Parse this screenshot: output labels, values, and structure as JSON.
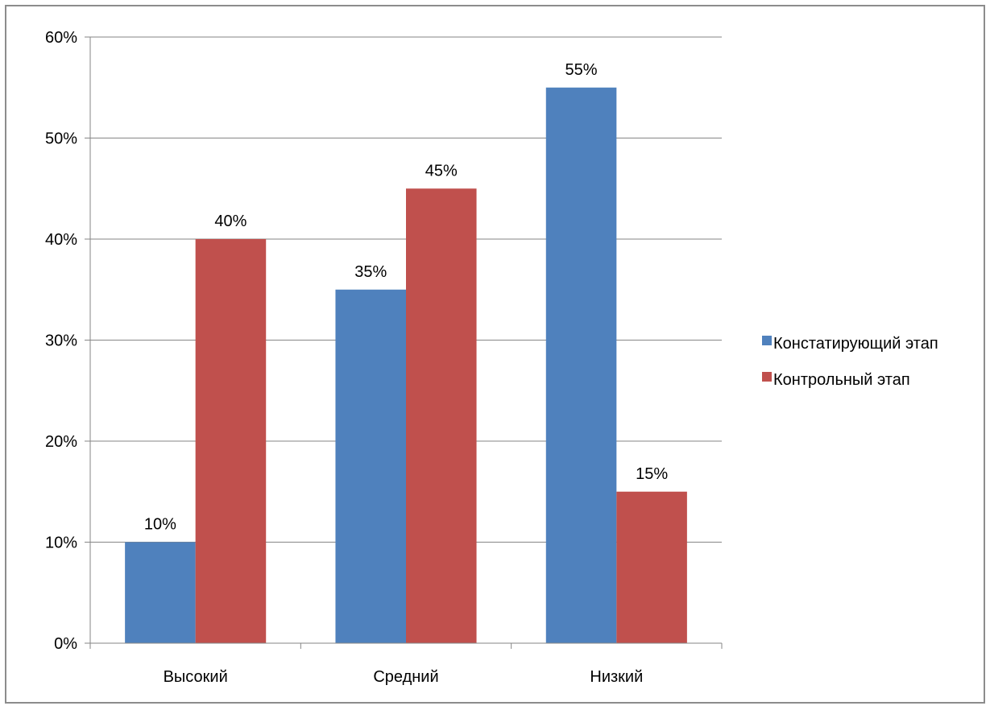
{
  "chart_data": {
    "type": "bar",
    "title": "",
    "xlabel": "",
    "ylabel": "",
    "categories": [
      "Высокий",
      "Средний",
      "Низкий"
    ],
    "series": [
      {
        "name": "Констатирующий этап",
        "values": [
          10,
          35,
          55
        ],
        "labels": [
          "10%",
          "35%",
          "55%"
        ],
        "color": "#4F81BD"
      },
      {
        "name": "Контрольный этап",
        "values": [
          40,
          45,
          15
        ],
        "labels": [
          "40%",
          "45%",
          "15%"
        ],
        "color": "#C0504D"
      }
    ],
    "ylim": [
      0,
      60
    ],
    "yticks": [
      0,
      10,
      20,
      30,
      40,
      50,
      60
    ],
    "ytick_labels": [
      "0%",
      "10%",
      "20%",
      "30%",
      "40%",
      "50%",
      "60%"
    ],
    "grid": true,
    "legend": "right",
    "gridline_color": "#868686",
    "frame_color": "#8C8C8C"
  }
}
